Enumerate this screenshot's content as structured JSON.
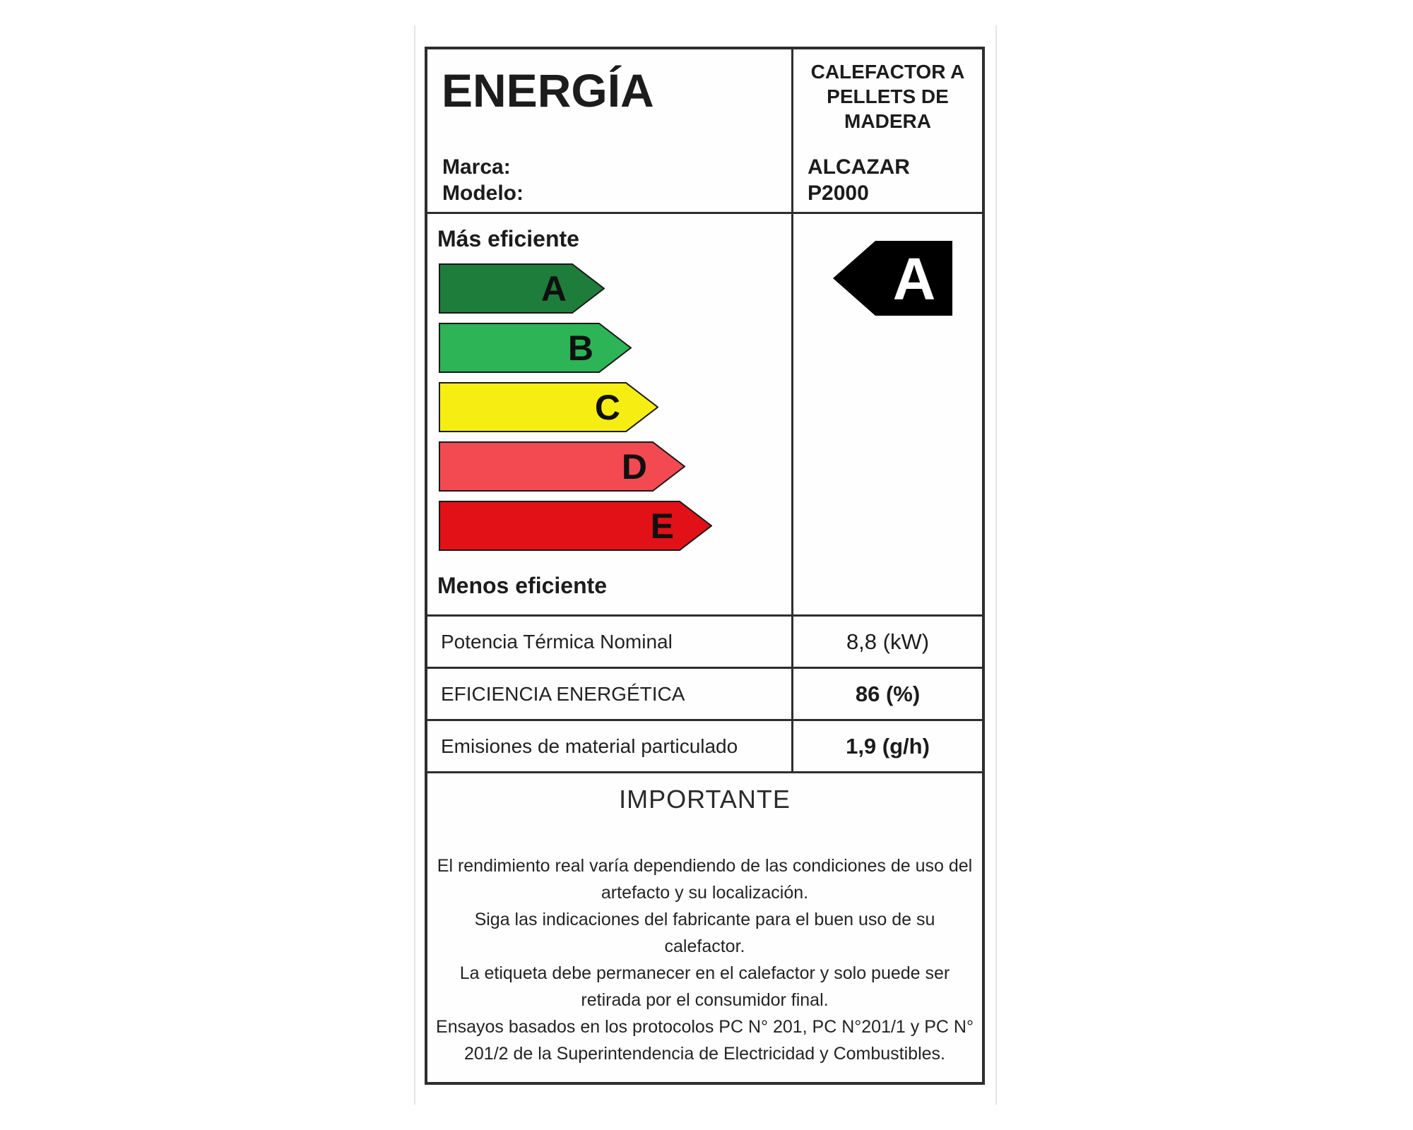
{
  "label": {
    "title": "ENERGÍA",
    "brand_label": "Marca:",
    "model_label": "Modelo:",
    "product_type": "CALEFACTOR A PELLETS DE MADERA",
    "brand_value": "ALCAZAR",
    "model_value": "P2000",
    "more_efficient": "Más eficiente",
    "less_efficient": "Menos eficiente",
    "rating": {
      "grade": "A",
      "arrow_color": "#000000",
      "letter_color": "#ffffff"
    },
    "scale": [
      {
        "grade": "A",
        "color": "#1f7d3b"
      },
      {
        "grade": "B",
        "color": "#2db457"
      },
      {
        "grade": "C",
        "color": "#f6ee12"
      },
      {
        "grade": "D",
        "color": "#f34a52"
      },
      {
        "grade": "E",
        "color": "#e11117"
      }
    ],
    "specs": [
      {
        "name": "Potencia Térmica Nominal",
        "value": "8,8 (kW)",
        "value_bold": false
      },
      {
        "name": "EFICIENCIA ENERGÉTICA",
        "value": "86 (%)",
        "value_bold": true
      },
      {
        "name": "Emisiones de material particulado",
        "value": "1,9 (g/h)",
        "value_bold": true
      }
    ],
    "important": {
      "heading": "IMPORTANTE",
      "notes": [
        "El rendimiento real varía dependiendo de las condiciones de uso del artefacto y su localización.",
        "Siga las indicaciones del fabricante para el buen uso de su calefactor.",
        "La etiqueta debe permanecer en el calefactor y solo puede ser retirada por el consumidor final.",
        "Ensayos basados en los protocolos PC N° 201, PC N°201/1 y PC N° 201/2 de la Superintendencia de Electricidad y Combustibles."
      ]
    }
  }
}
